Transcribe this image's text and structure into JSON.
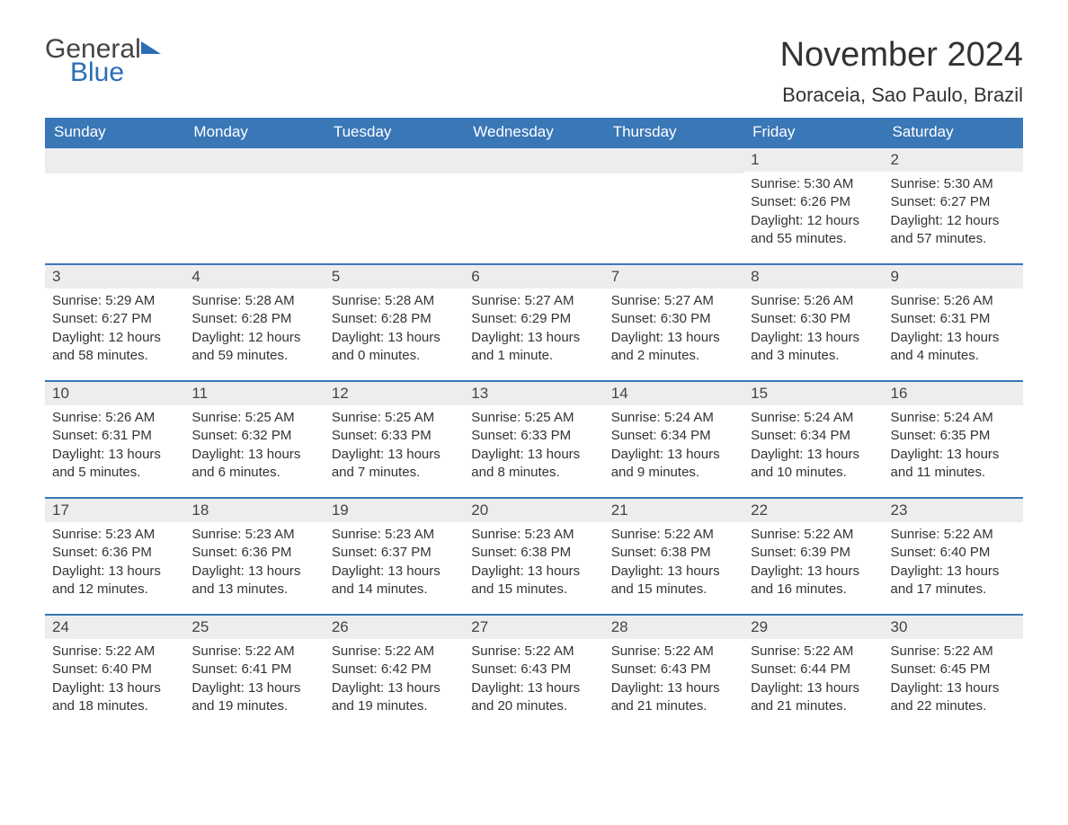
{
  "logo": {
    "part1": "General",
    "part2": "Blue"
  },
  "title": "November 2024",
  "location": "Boraceia, Sao Paulo, Brazil",
  "colors": {
    "header_bg": "#3a77b7",
    "header_text": "#ffffff",
    "daynum_bg": "#ededed",
    "rule": "#3a77b7",
    "logo_blue": "#2a6db5",
    "body_text": "#333333",
    "page_bg": "#ffffff"
  },
  "dayHeaders": [
    "Sunday",
    "Monday",
    "Tuesday",
    "Wednesday",
    "Thursday",
    "Friday",
    "Saturday"
  ],
  "weeks": [
    [
      null,
      null,
      null,
      null,
      null,
      {
        "n": "1",
        "sr": "5:30 AM",
        "ss": "6:26 PM",
        "dl": "12 hours and 55 minutes."
      },
      {
        "n": "2",
        "sr": "5:30 AM",
        "ss": "6:27 PM",
        "dl": "12 hours and 57 minutes."
      }
    ],
    [
      {
        "n": "3",
        "sr": "5:29 AM",
        "ss": "6:27 PM",
        "dl": "12 hours and 58 minutes."
      },
      {
        "n": "4",
        "sr": "5:28 AM",
        "ss": "6:28 PM",
        "dl": "12 hours and 59 minutes."
      },
      {
        "n": "5",
        "sr": "5:28 AM",
        "ss": "6:28 PM",
        "dl": "13 hours and 0 minutes."
      },
      {
        "n": "6",
        "sr": "5:27 AM",
        "ss": "6:29 PM",
        "dl": "13 hours and 1 minute."
      },
      {
        "n": "7",
        "sr": "5:27 AM",
        "ss": "6:30 PM",
        "dl": "13 hours and 2 minutes."
      },
      {
        "n": "8",
        "sr": "5:26 AM",
        "ss": "6:30 PM",
        "dl": "13 hours and 3 minutes."
      },
      {
        "n": "9",
        "sr": "5:26 AM",
        "ss": "6:31 PM",
        "dl": "13 hours and 4 minutes."
      }
    ],
    [
      {
        "n": "10",
        "sr": "5:26 AM",
        "ss": "6:31 PM",
        "dl": "13 hours and 5 minutes."
      },
      {
        "n": "11",
        "sr": "5:25 AM",
        "ss": "6:32 PM",
        "dl": "13 hours and 6 minutes."
      },
      {
        "n": "12",
        "sr": "5:25 AM",
        "ss": "6:33 PM",
        "dl": "13 hours and 7 minutes."
      },
      {
        "n": "13",
        "sr": "5:25 AM",
        "ss": "6:33 PM",
        "dl": "13 hours and 8 minutes."
      },
      {
        "n": "14",
        "sr": "5:24 AM",
        "ss": "6:34 PM",
        "dl": "13 hours and 9 minutes."
      },
      {
        "n": "15",
        "sr": "5:24 AM",
        "ss": "6:34 PM",
        "dl": "13 hours and 10 minutes."
      },
      {
        "n": "16",
        "sr": "5:24 AM",
        "ss": "6:35 PM",
        "dl": "13 hours and 11 minutes."
      }
    ],
    [
      {
        "n": "17",
        "sr": "5:23 AM",
        "ss": "6:36 PM",
        "dl": "13 hours and 12 minutes."
      },
      {
        "n": "18",
        "sr": "5:23 AM",
        "ss": "6:36 PM",
        "dl": "13 hours and 13 minutes."
      },
      {
        "n": "19",
        "sr": "5:23 AM",
        "ss": "6:37 PM",
        "dl": "13 hours and 14 minutes."
      },
      {
        "n": "20",
        "sr": "5:23 AM",
        "ss": "6:38 PM",
        "dl": "13 hours and 15 minutes."
      },
      {
        "n": "21",
        "sr": "5:22 AM",
        "ss": "6:38 PM",
        "dl": "13 hours and 15 minutes."
      },
      {
        "n": "22",
        "sr": "5:22 AM",
        "ss": "6:39 PM",
        "dl": "13 hours and 16 minutes."
      },
      {
        "n": "23",
        "sr": "5:22 AM",
        "ss": "6:40 PM",
        "dl": "13 hours and 17 minutes."
      }
    ],
    [
      {
        "n": "24",
        "sr": "5:22 AM",
        "ss": "6:40 PM",
        "dl": "13 hours and 18 minutes."
      },
      {
        "n": "25",
        "sr": "5:22 AM",
        "ss": "6:41 PM",
        "dl": "13 hours and 19 minutes."
      },
      {
        "n": "26",
        "sr": "5:22 AM",
        "ss": "6:42 PM",
        "dl": "13 hours and 19 minutes."
      },
      {
        "n": "27",
        "sr": "5:22 AM",
        "ss": "6:43 PM",
        "dl": "13 hours and 20 minutes."
      },
      {
        "n": "28",
        "sr": "5:22 AM",
        "ss": "6:43 PM",
        "dl": "13 hours and 21 minutes."
      },
      {
        "n": "29",
        "sr": "5:22 AM",
        "ss": "6:44 PM",
        "dl": "13 hours and 21 minutes."
      },
      {
        "n": "30",
        "sr": "5:22 AM",
        "ss": "6:45 PM",
        "dl": "13 hours and 22 minutes."
      }
    ]
  ],
  "labels": {
    "sunrise": "Sunrise: ",
    "sunset": "Sunset: ",
    "daylight": "Daylight: "
  }
}
